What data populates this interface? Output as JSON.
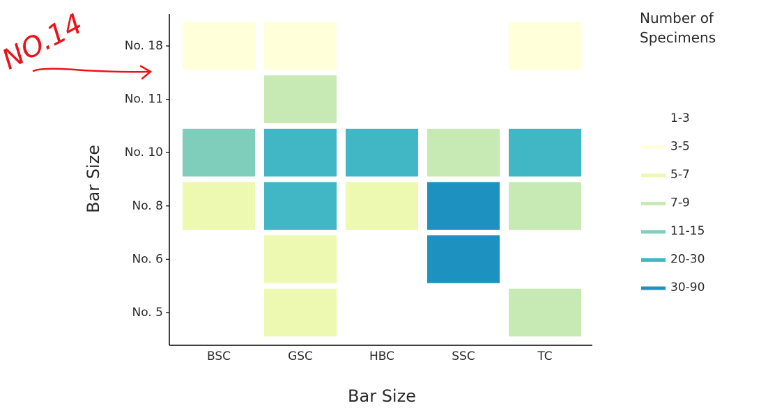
{
  "chart_data": {
    "type": "heatmap",
    "annotation": "NO.14",
    "x_title": "Bar Size",
    "y_title": "Bar Size",
    "legend_title": "Number of Specimens",
    "x_categories": [
      "BSC",
      "GSC",
      "HBC",
      "SSC",
      "TC"
    ],
    "y_categories": [
      "No. 5",
      "No. 6",
      "No. 8",
      "No. 10",
      "No. 11",
      "No. 18"
    ],
    "classes": [
      {
        "label": "1-3",
        "color": "#ffffff"
      },
      {
        "label": "3-5",
        "color": "#ffffd9"
      },
      {
        "label": "5-7",
        "color": "#edf8b1"
      },
      {
        "label": "7-9",
        "color": "#c7e9b4"
      },
      {
        "label": "11-15",
        "color": "#7fcdbb"
      },
      {
        "label": "20-30",
        "color": "#41b6c4"
      },
      {
        "label": "30-90",
        "color": "#1d91c0"
      }
    ],
    "cells": [
      [
        null,
        "5-7",
        null,
        null,
        "7-9"
      ],
      [
        null,
        "5-7",
        null,
        "30-90",
        null
      ],
      [
        "5-7",
        "20-30",
        "5-7",
        "30-90",
        "7-9"
      ],
      [
        "11-15",
        "20-30",
        "20-30",
        "7-9",
        "20-30"
      ],
      [
        null,
        "7-9",
        null,
        null,
        null
      ],
      [
        "3-5",
        "3-5",
        null,
        null,
        "3-5"
      ]
    ]
  }
}
